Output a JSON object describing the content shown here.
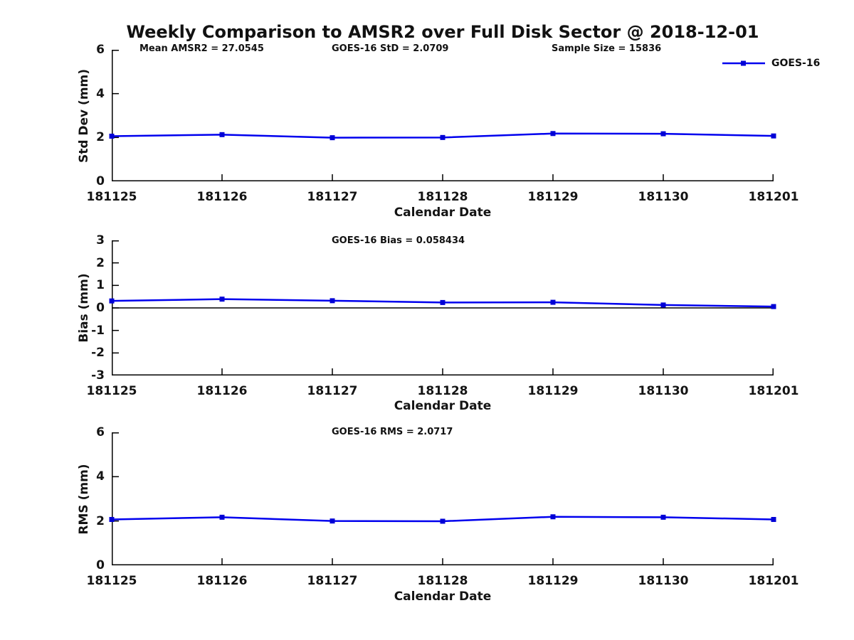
{
  "title": "Weekly Comparison to AMSR2 over Full Disk Sector @ 2018-12-01",
  "legend": {
    "label": "GOES-16"
  },
  "colors": {
    "line": "#0000ee",
    "marker": "#0000d6",
    "axis": "#000000"
  },
  "chart_data": [
    {
      "type": "line",
      "name": "std-dev",
      "title": "",
      "annotations": [
        "Mean AMSR2 = 27.0545",
        "GOES-16 StD = 2.0709",
        "Sample Size = 15836"
      ],
      "xlabel": "Calendar Date",
      "ylabel": "Std Dev (mm)",
      "categories": [
        "181125",
        "181126",
        "181127",
        "181128",
        "181129",
        "181130",
        "181201"
      ],
      "series": [
        {
          "name": "GOES-16",
          "values": [
            2.06,
            2.13,
            1.99,
            2.0,
            2.18,
            2.17,
            2.07
          ]
        }
      ],
      "ylim": [
        0,
        6
      ],
      "yticks": [
        0,
        2,
        4,
        6
      ],
      "zero_line": false,
      "grid": false,
      "legend_position": "top-right"
    },
    {
      "type": "line",
      "name": "bias",
      "title": "",
      "annotations": [
        "GOES-16 Bias  = 0.058434"
      ],
      "xlabel": "Calendar Date",
      "ylabel": "Bias (mm)",
      "categories": [
        "181125",
        "181126",
        "181127",
        "181128",
        "181129",
        "181130",
        "181201"
      ],
      "series": [
        {
          "name": "GOES-16",
          "values": [
            0.31,
            0.39,
            0.32,
            0.24,
            0.25,
            0.13,
            0.06
          ]
        }
      ],
      "ylim": [
        -3,
        3
      ],
      "yticks": [
        3,
        2,
        1,
        0,
        -1,
        -2,
        -3
      ],
      "zero_line": true,
      "grid": false,
      "legend_position": "none"
    },
    {
      "type": "line",
      "name": "rms",
      "title": "",
      "annotations": [
        "GOES-16 RMS = 2.0717"
      ],
      "xlabel": "Calendar Date",
      "ylabel": "RMS (mm)",
      "categories": [
        "181125",
        "181126",
        "181127",
        "181128",
        "181129",
        "181130",
        "181201"
      ],
      "series": [
        {
          "name": "GOES-16",
          "values": [
            2.07,
            2.17,
            2.0,
            1.99,
            2.19,
            2.17,
            2.07
          ]
        }
      ],
      "ylim": [
        0,
        6
      ],
      "yticks": [
        0,
        2,
        4,
        6
      ],
      "zero_line": false,
      "grid": false,
      "legend_position": "none"
    }
  ]
}
